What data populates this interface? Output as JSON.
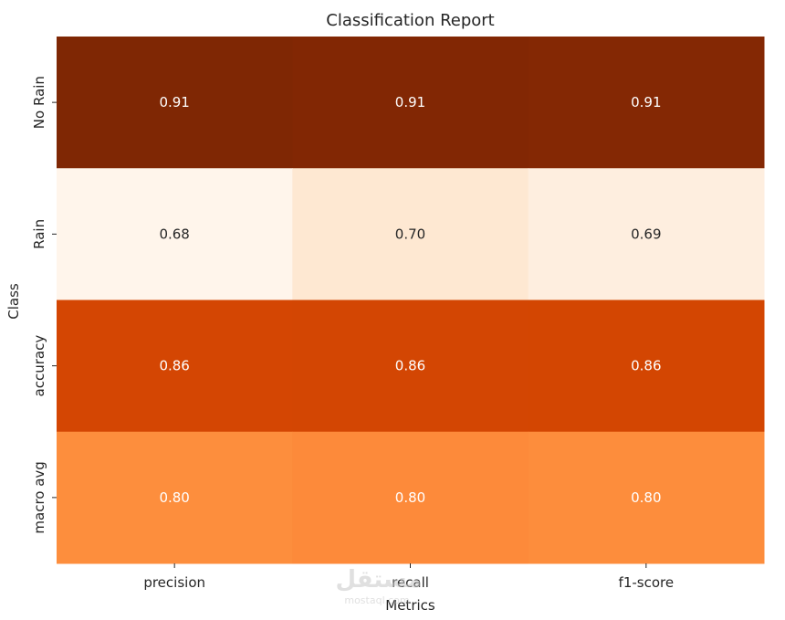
{
  "chart_data": {
    "type": "heatmap",
    "title": "Classification Report",
    "xlabel": "Metrics",
    "ylabel": "Class",
    "columns": [
      "precision",
      "recall",
      "f1-score"
    ],
    "rows": [
      "No Rain",
      "Rain",
      "accuracy",
      "macro avg"
    ],
    "values": [
      [
        0.91,
        0.91,
        0.91
      ],
      [
        0.68,
        0.7,
        0.69
      ],
      [
        0.86,
        0.86,
        0.86
      ],
      [
        0.8,
        0.8,
        0.8
      ]
    ],
    "value_labels": [
      [
        "0.91",
        "0.91",
        "0.91"
      ],
      [
        "0.68",
        "0.70",
        "0.69"
      ],
      [
        "0.86",
        "0.86",
        "0.86"
      ],
      [
        "0.80",
        "0.80",
        "0.80"
      ]
    ],
    "colormap": "Oranges",
    "vmin": 0.68,
    "vmax": 0.91,
    "cell_colors": [
      [
        "#7f2704",
        "#822704",
        "#842804"
      ],
      [
        "#fff5eb",
        "#fee8d2",
        "#feeedf"
      ],
      [
        "#d44603",
        "#d34603",
        "#d34602"
      ],
      [
        "#fd8e3d",
        "#fd8a3a",
        "#fd8d3c"
      ]
    ],
    "text_color_dark": "#ffffff",
    "text_color_light": "#262626"
  },
  "watermark": {
    "logo_text": "مستقل",
    "sub_text": "mostaql.com"
  }
}
